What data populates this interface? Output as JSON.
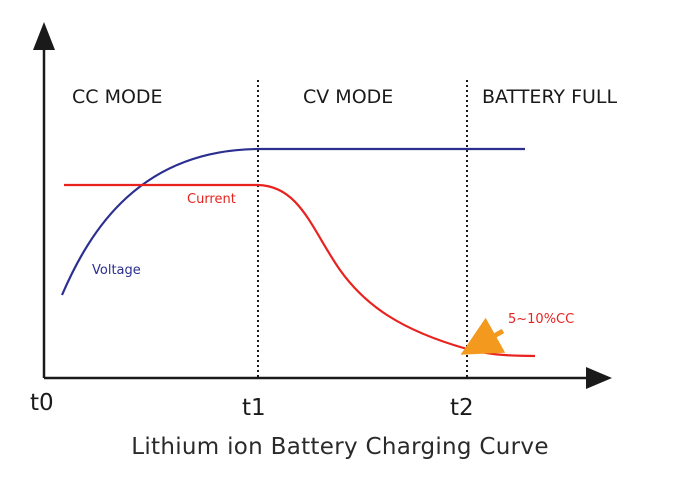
{
  "zones": [
    {
      "id": "cc",
      "label": "CC MODE"
    },
    {
      "id": "cv",
      "label": "CV MODE"
    },
    {
      "id": "full",
      "label": "BATTERY FULL"
    }
  ],
  "time_markers": [
    "t0",
    "t1",
    "t2"
  ],
  "series": {
    "current": {
      "label": "Current",
      "color": "#e8231f"
    },
    "voltage": {
      "label": "Voltage",
      "color": "#2b2f8f"
    }
  },
  "annotation": {
    "label": "5~10%CC",
    "color": "#f39a1e"
  },
  "caption": "Lithium ion Battery Charging Curve",
  "colors": {
    "axis": "#1a1a1a",
    "divider": "#1a1a1a"
  }
}
